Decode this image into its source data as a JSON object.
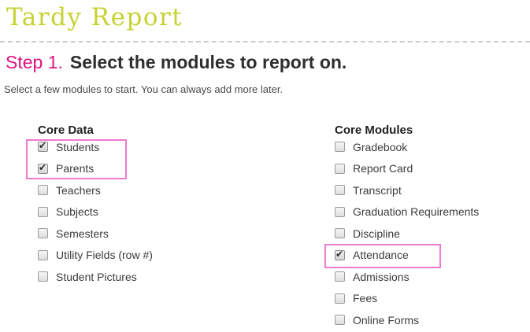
{
  "page": {
    "title": "Tardy Report",
    "step_label": "Step 1.",
    "step_title": "Select the modules to report on.",
    "subtitle": "Select a few modules to start. You can always add more later."
  },
  "colors": {
    "title_text": "#c6d232",
    "step_label": "#e0137f",
    "highlight_border": "#f07ad2"
  },
  "columns": [
    {
      "heading": "Core Data",
      "items": [
        {
          "label": "Students",
          "checked": true,
          "highlighted": true
        },
        {
          "label": "Parents",
          "checked": true,
          "highlighted": true
        },
        {
          "label": "Teachers",
          "checked": false,
          "highlighted": false
        },
        {
          "label": "Subjects",
          "checked": false,
          "highlighted": false
        },
        {
          "label": "Semesters",
          "checked": false,
          "highlighted": false
        },
        {
          "label": "Utility Fields (row #)",
          "checked": false,
          "highlighted": false
        },
        {
          "label": "Student Pictures",
          "checked": false,
          "highlighted": false
        }
      ]
    },
    {
      "heading": "Core Modules",
      "items": [
        {
          "label": "Gradebook",
          "checked": false,
          "highlighted": false
        },
        {
          "label": "Report Card",
          "checked": false,
          "highlighted": false
        },
        {
          "label": "Transcript",
          "checked": false,
          "highlighted": false
        },
        {
          "label": "Graduation Requirements",
          "checked": false,
          "highlighted": false
        },
        {
          "label": "Discipline",
          "checked": false,
          "highlighted": false
        },
        {
          "label": "Attendance",
          "checked": true,
          "highlighted": true
        },
        {
          "label": "Admissions",
          "checked": false,
          "highlighted": false
        },
        {
          "label": "Fees",
          "checked": false,
          "highlighted": false
        },
        {
          "label": "Online Forms",
          "checked": false,
          "highlighted": false
        }
      ]
    }
  ]
}
